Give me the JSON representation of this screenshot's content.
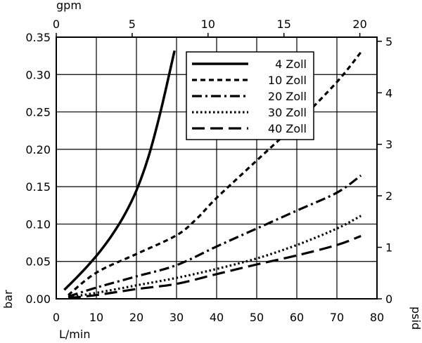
{
  "chart_data": {
    "type": "line",
    "xlabel": "L/min",
    "ylabel": "bar",
    "x2label": "gpm",
    "y2label": "psid",
    "xlim": [
      0,
      80
    ],
    "ylim": [
      0,
      0.35
    ],
    "x2lim": [
      0,
      21.13
    ],
    "y2lim": [
      0,
      5.08
    ],
    "xticks": [
      "0",
      "10",
      "20",
      "30",
      "40",
      "50",
      "60",
      "70",
      "80"
    ],
    "yticks": [
      "0.00",
      "0.05",
      "0.10",
      "0.15",
      "0.20",
      "0.25",
      "0.30",
      "0.35"
    ],
    "x2ticks": [
      "0",
      "5",
      "10",
      "15",
      "20"
    ],
    "y2ticks": [
      "0",
      "1",
      "2",
      "3",
      "4",
      "5"
    ],
    "grid": true,
    "legend_position": "top-right",
    "series": [
      {
        "name": "4 Zoll",
        "style": "solid",
        "x": [
          2,
          5,
          8,
          11,
          14,
          17,
          20,
          23,
          26,
          29.5
        ],
        "y": [
          0.012,
          0.028,
          0.045,
          0.064,
          0.086,
          0.112,
          0.145,
          0.19,
          0.25,
          0.332
        ]
      },
      {
        "name": "10 Zoll",
        "style": "dashed-short",
        "x": [
          3,
          10,
          20,
          30,
          35,
          40,
          50,
          60,
          70,
          76
        ],
        "y": [
          0.005,
          0.035,
          0.06,
          0.085,
          0.107,
          0.135,
          0.185,
          0.235,
          0.29,
          0.33
        ]
      },
      {
        "name": "20 Zoll",
        "style": "dash-dot",
        "x": [
          3,
          10,
          20,
          30,
          40,
          50,
          60,
          70,
          76
        ],
        "y": [
          0.003,
          0.015,
          0.03,
          0.045,
          0.07,
          0.094,
          0.118,
          0.142,
          0.165
        ]
      },
      {
        "name": "30 Zoll",
        "style": "dotted",
        "x": [
          3,
          10,
          20,
          30,
          40,
          50,
          60,
          70,
          76
        ],
        "y": [
          0.002,
          0.008,
          0.018,
          0.028,
          0.04,
          0.054,
          0.072,
          0.094,
          0.111
        ]
      },
      {
        "name": "40 Zoll",
        "style": "dashed-long",
        "x": [
          3,
          10,
          20,
          30,
          40,
          50,
          60,
          70,
          76
        ],
        "y": [
          0.001,
          0.005,
          0.013,
          0.02,
          0.033,
          0.046,
          0.058,
          0.072,
          0.084
        ]
      }
    ]
  }
}
